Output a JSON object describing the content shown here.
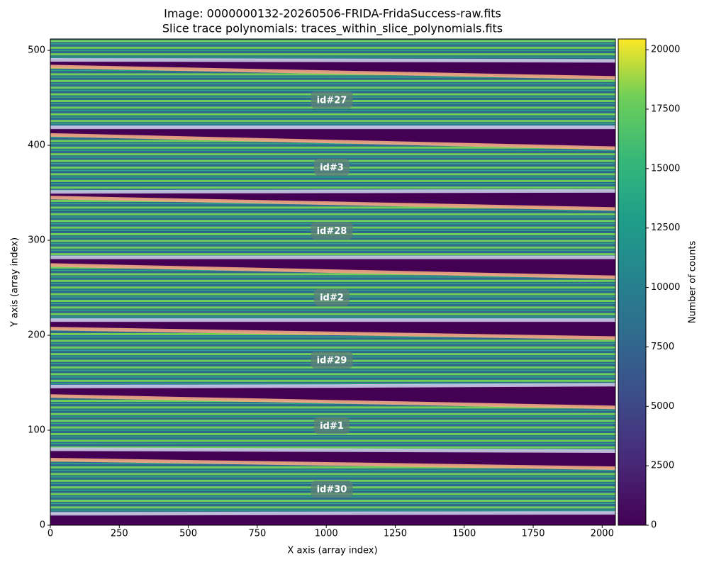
{
  "chart_data": {
    "type": "image",
    "title": "Image: 0000000132-20260506-FRIDA-FridaSuccess-raw.fits",
    "subtitle": "Slice trace polynomials: traces_within_slice_polynomials.fits",
    "x_label": "X axis (array index)",
    "y_label": "Y axis (array index)",
    "xlim": [
      0,
      2048
    ],
    "ylim": [
      0,
      512
    ],
    "xticks": [
      0,
      250,
      500,
      750,
      1000,
      1250,
      1500,
      1750,
      2000
    ],
    "yticks": [
      0,
      100,
      200,
      300,
      400,
      500
    ],
    "colorbar": {
      "label": "Number of counts",
      "lim": [
        0,
        20450
      ],
      "ticks": [
        0,
        2500,
        5000,
        7500,
        10000,
        12500,
        15000,
        17500,
        20000
      ]
    },
    "x": [
      0,
      1024,
      2048
    ],
    "series": [
      {
        "color": "#c9c8e6",
        "values": [
          12,
          12.5,
          13
        ]
      },
      {
        "color": "#f2a884",
        "values": [
          69,
          64.5,
          60
        ]
      },
      {
        "color": "#c9c8e6",
        "values": [
          80,
          79,
          78
        ]
      },
      {
        "color": "#f2a884",
        "values": [
          136,
          130,
          124
        ]
      },
      {
        "color": "#c9c8e6",
        "values": [
          146,
          146.5,
          148
        ]
      },
      {
        "color": "#f2a884",
        "values": [
          207,
          202,
          197
        ]
      },
      {
        "color": "#c9c8e6",
        "values": [
          216,
          216,
          216
        ]
      },
      {
        "color": "#f2a884",
        "values": [
          274,
          267.5,
          261
        ]
      },
      {
        "color": "#c9c8e6",
        "values": [
          282,
          282,
          282
        ]
      },
      {
        "color": "#f2a884",
        "values": [
          345,
          339,
          333
        ]
      },
      {
        "color": "#c9c8e6",
        "values": [
          351,
          351.5,
          352
        ]
      },
      {
        "color": "#f2a884",
        "values": [
          411,
          404,
          397
        ]
      },
      {
        "color": "#c9c8e6",
        "values": [
          419,
          419,
          419
        ]
      },
      {
        "color": "#f2a884",
        "values": [
          483,
          477,
          471
        ]
      },
      {
        "color": "#c9c8e6",
        "values": [
          490,
          489.5,
          489
        ]
      }
    ],
    "annotations": [
      {
        "text": "id#27",
        "x": 1020,
        "y": 448
      },
      {
        "text": "id#3",
        "x": 1020,
        "y": 377
      },
      {
        "text": "id#28",
        "x": 1020,
        "y": 310
      },
      {
        "text": "id#2",
        "x": 1020,
        "y": 240
      },
      {
        "text": "id#29",
        "x": 1020,
        "y": 174
      },
      {
        "text": "id#1",
        "x": 1020,
        "y": 105
      },
      {
        "text": "id#30",
        "x": 1020,
        "y": 38
      }
    ]
  }
}
